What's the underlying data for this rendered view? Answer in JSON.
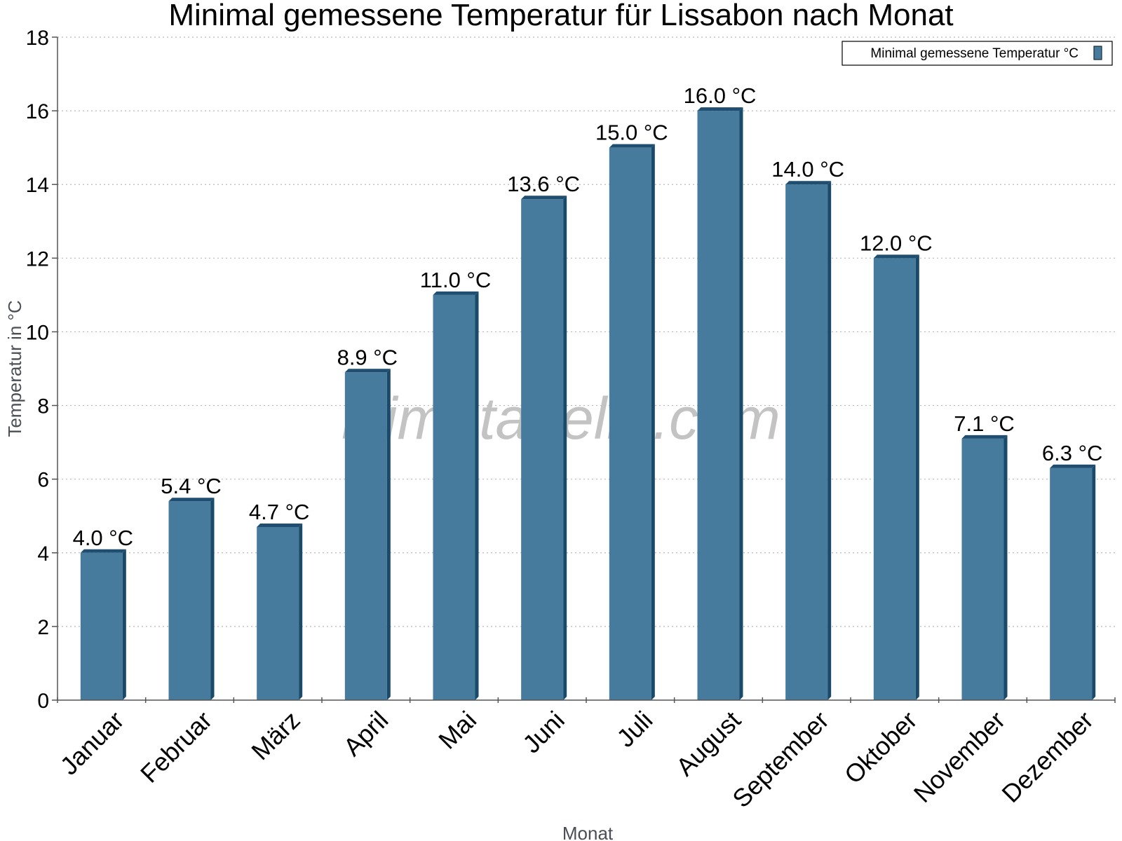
{
  "chart_data": {
    "type": "bar",
    "title": "Minimal gemessene Temperatur für Lissabon nach Monat",
    "xlabel": "Monat",
    "ylabel": "Temperatur in °C",
    "categories": [
      "Januar",
      "Februar",
      "März",
      "April",
      "Mai",
      "Juni",
      "Juli",
      "August",
      "September",
      "Oktober",
      "November",
      "Dezember"
    ],
    "series": [
      {
        "name": "Minimal gemessene Temperatur °C",
        "values": [
          4.0,
          5.4,
          4.7,
          8.9,
          11.0,
          13.6,
          15.0,
          16.0,
          14.0,
          12.0,
          7.1,
          6.3
        ],
        "data_labels": [
          "4.0 °C",
          "5.4 °C",
          "4.7 °C",
          "8.9 °C",
          "11.0 °C",
          "13.6 °C",
          "15.0 °C",
          "16.0 °C",
          "14.0 °C",
          "12.0 °C",
          "7.1 °C",
          "6.3 °C"
        ]
      }
    ],
    "ylim": [
      0,
      18
    ],
    "yticks": [
      0,
      2,
      4,
      6,
      8,
      10,
      12,
      14,
      16,
      18
    ],
    "grid": true,
    "legend_position": "top-right",
    "watermark": "klimatabelle.com",
    "colors": {
      "bar_face": "#467b9d",
      "bar_side": "#1a4a6a",
      "bar_top": "#1f4e70",
      "grid": "#b9b9b9",
      "axis": "#555555"
    }
  }
}
